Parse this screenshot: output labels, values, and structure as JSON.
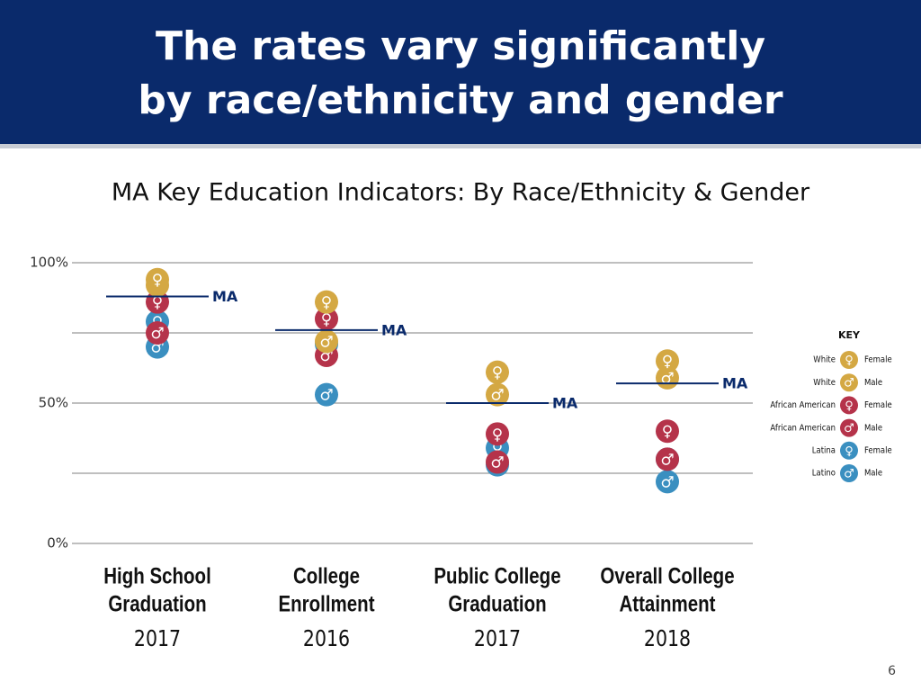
{
  "header": {
    "title_lines": [
      "The rates vary significantly",
      "by race/ethnicity and gender"
    ]
  },
  "page_number": "6",
  "chart_data": {
    "type": "dot",
    "title": "MA Key Education Indicators: By Race/Ethnicity & Gender",
    "categories": [
      [
        "High School",
        "Graduation"
      ],
      [
        "College",
        "Enrollment"
      ],
      [
        "Public College",
        "Graduation"
      ],
      [
        "Overall College",
        "Attainment"
      ]
    ],
    "category_years": [
      "2017",
      "2016",
      "2017",
      "2018"
    ],
    "ylim": [
      0,
      100
    ],
    "yticks": [
      {
        "value": 0,
        "label": "0%"
      },
      {
        "value": 50,
        "label": "50%"
      },
      {
        "value": 100,
        "label": "100%"
      }
    ],
    "minor_gridlines": [
      25,
      75
    ],
    "grid": true,
    "reference": {
      "label": "MA",
      "color": "#0a2a6b",
      "values": [
        88,
        76,
        50,
        57
      ]
    },
    "legend": {
      "title": "KEY",
      "position": "right"
    },
    "series": [
      {
        "race": "White",
        "gender": "Female",
        "symbol": "♀",
        "color": "#d4a843",
        "values": [
          94,
          86,
          61,
          65
        ]
      },
      {
        "race": "White",
        "gender": "Male",
        "symbol": "♂",
        "color": "#d4a843",
        "values": [
          92,
          72,
          53,
          59
        ]
      },
      {
        "race": "African American",
        "gender": "Female",
        "symbol": "♀",
        "color": "#b5334a",
        "values": [
          86,
          80,
          39,
          40
        ]
      },
      {
        "race": "African American",
        "gender": "Male",
        "symbol": "♂",
        "color": "#b5334a",
        "values": [
          75,
          67,
          29,
          30
        ]
      },
      {
        "race": "Latina",
        "gender": "Female",
        "symbol": "♀",
        "color": "#3a8fc0",
        "values": [
          79,
          71,
          34,
          30
        ]
      },
      {
        "race": "Latino",
        "gender": "Male",
        "symbol": "♂",
        "color": "#3a8fc0",
        "values": [
          70,
          53,
          28,
          22
        ]
      }
    ]
  }
}
